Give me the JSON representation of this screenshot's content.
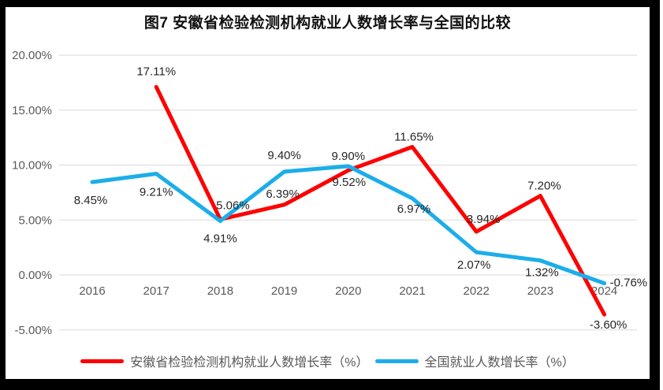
{
  "title": "图7  安徽省检验检测机构就业人数增长率与全国的比较",
  "chart_data": {
    "type": "line",
    "title": "图7  安徽省检验检测机构就业人数增长率与全国的比较",
    "categories": [
      "2016",
      "2017",
      "2018",
      "2019",
      "2020",
      "2021",
      "2022",
      "2023",
      "2024"
    ],
    "series": [
      {
        "name": "安徽省检验检测机构就业人数增长率（%）",
        "color": "#FF0000",
        "values": [
          null,
          17.11,
          5.06,
          6.39,
          9.52,
          11.65,
          3.94,
          7.2,
          -3.6
        ],
        "point_labels": [
          "",
          "17.11%",
          "5.06%",
          "6.39%",
          "9.52%",
          "11.65%",
          "3.94%",
          "7.20%",
          "-3.60%"
        ]
      },
      {
        "name": "全国就业人数增长率（%）",
        "color": "#1BAEE9",
        "values": [
          8.45,
          9.21,
          4.91,
          9.4,
          9.9,
          6.97,
          2.07,
          1.32,
          -0.76
        ],
        "point_labels": [
          "8.45%",
          "9.21%",
          "4.91%",
          "9.40%",
          "9.90%",
          "6.97%",
          "2.07%",
          "1.32%",
          "-0.76%"
        ]
      }
    ],
    "ylim": [
      -5,
      20
    ],
    "yticks": [
      {
        "value": 20,
        "label": "20.00%"
      },
      {
        "value": 15,
        "label": "15.00%"
      },
      {
        "value": 10,
        "label": "10.00%"
      },
      {
        "value": 5,
        "label": "5.00%"
      },
      {
        "value": 0,
        "label": "0.00%"
      },
      {
        "value": -5,
        "label": "-5.00%"
      }
    ],
    "grid": true,
    "legend_position": "bottom",
    "gridline_color": "#d9d9d9",
    "axis_label_color": "#595959",
    "data_label_color": "#262626"
  },
  "legend": {
    "items": [
      {
        "label": "安徽省检验检测机构就业人数增长率（%）",
        "color": "#FF0000"
      },
      {
        "label": "全国就业人数增长率（%）",
        "color": "#1BAEE9"
      }
    ]
  }
}
